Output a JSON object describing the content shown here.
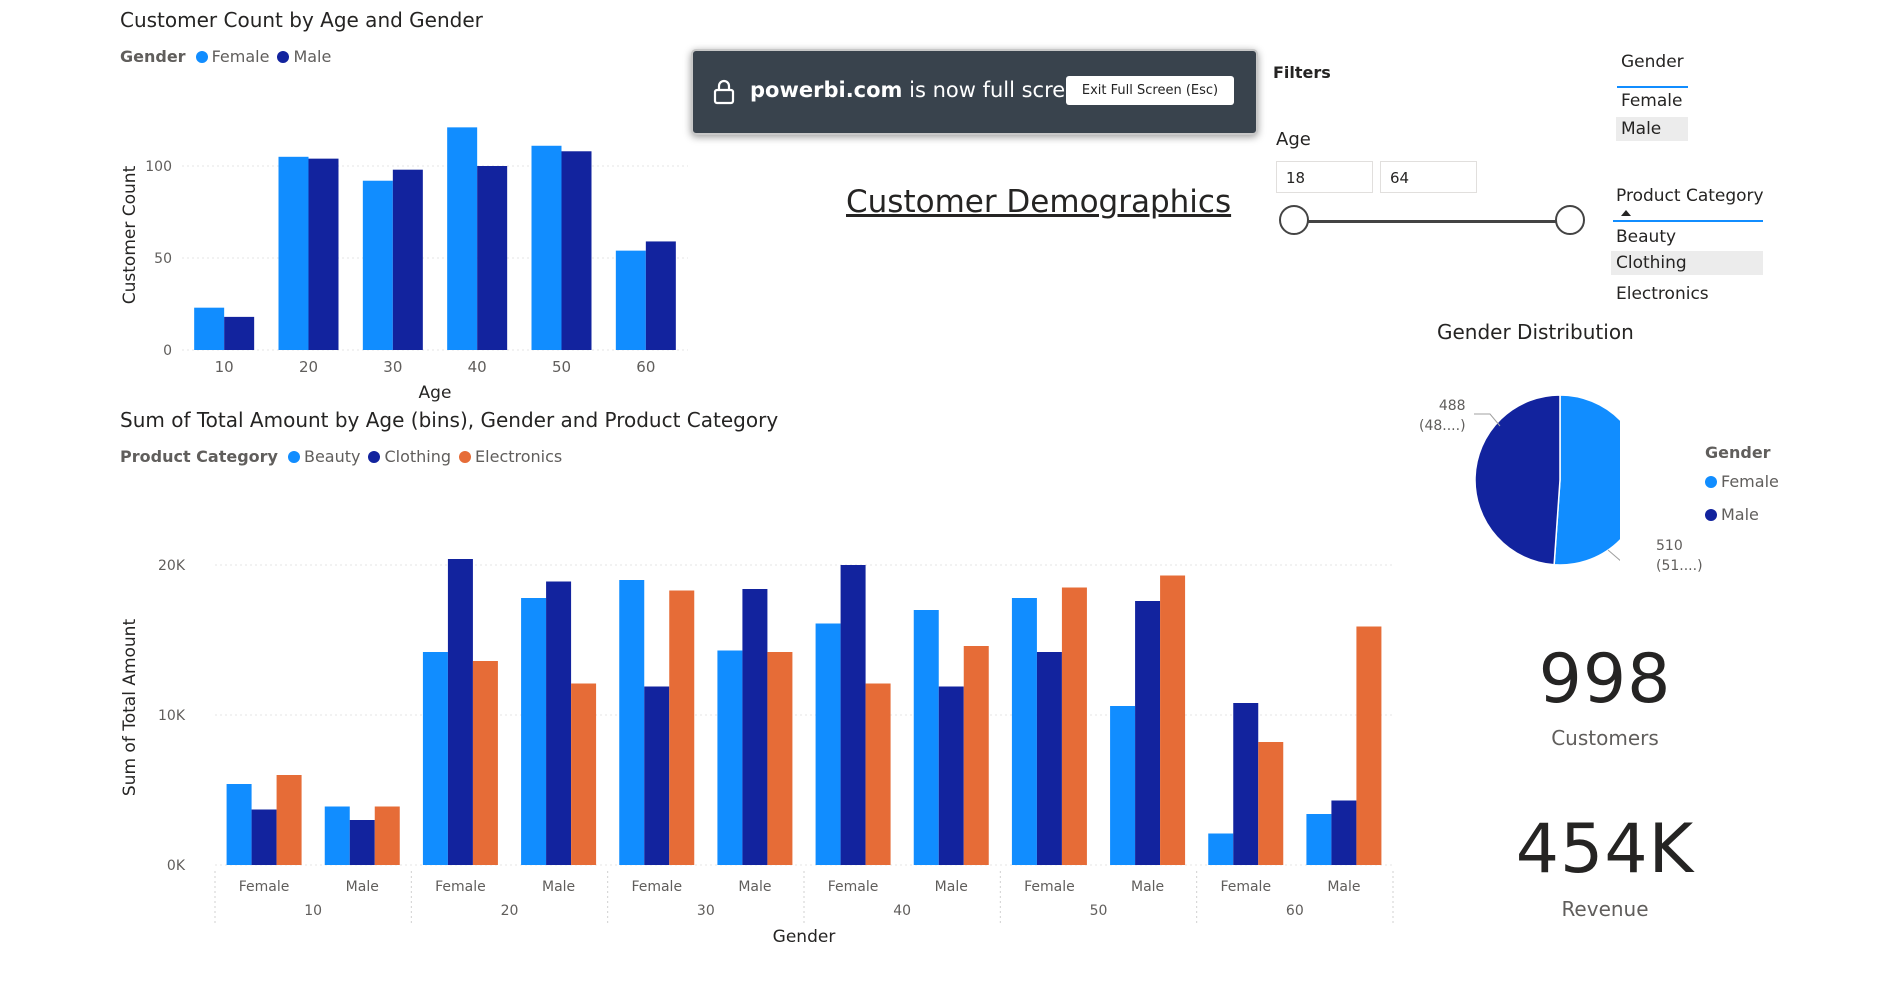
{
  "page": {
    "title": "Customer Demographics"
  },
  "fullscreen_toast": {
    "domain": "powerbi.com",
    "message": " is now full screen",
    "button_label": "Exit Full Screen (Esc)",
    "icon": "lock-icon"
  },
  "filters": {
    "label": "Filters",
    "age": {
      "label": "Age",
      "min_value": "18",
      "max_value": "64",
      "range_min": 18,
      "range_max": 64
    }
  },
  "gender_slicer": {
    "header": "Gender",
    "items": [
      {
        "label": "Female",
        "selected": false
      },
      {
        "label": "Male",
        "selected": true
      }
    ]
  },
  "category_slicer": {
    "header": "Product Category",
    "items": [
      {
        "label": "Beauty",
        "selected": false
      },
      {
        "label": "Clothing",
        "selected": true
      },
      {
        "label": "Electronics",
        "selected": false
      }
    ]
  },
  "kpis": {
    "customers": {
      "value": "998",
      "label": "Customers"
    },
    "revenue": {
      "value": "454K",
      "label": "Revenue"
    }
  },
  "colors": {
    "female": "#118dff",
    "male": "#12239e",
    "beauty": "#118dff",
    "clothing": "#12239e",
    "electronics": "#e66c37"
  },
  "chart_data": [
    {
      "type": "bar",
      "title": "Customer Count by Age and Gender",
      "legend_title": "Gender",
      "xlabel": "Age",
      "ylabel": "Customer Count",
      "categories": [
        "10",
        "20",
        "30",
        "40",
        "50",
        "60"
      ],
      "ylim": [
        0,
        125
      ],
      "yticks": [
        0,
        50,
        100
      ],
      "series": [
        {
          "name": "Female",
          "color": "#118dff",
          "values": [
            23,
            105,
            92,
            121,
            111,
            54
          ]
        },
        {
          "name": "Male",
          "color": "#12239e",
          "values": [
            18,
            104,
            98,
            100,
            108,
            59
          ]
        }
      ]
    },
    {
      "type": "bar",
      "title": "Sum of Total Amount by Age (bins), Gender and Product Category",
      "legend_title": "Product Category",
      "xlabel": "Gender",
      "ylabel": "Sum of Total Amount",
      "groups": [
        {
          "age": "10",
          "genders": [
            "Female",
            "Male"
          ]
        },
        {
          "age": "20",
          "genders": [
            "Female",
            "Male"
          ]
        },
        {
          "age": "30",
          "genders": [
            "Female",
            "Male"
          ]
        },
        {
          "age": "40",
          "genders": [
            "Female",
            "Male"
          ]
        },
        {
          "age": "50",
          "genders": [
            "Female",
            "Male"
          ]
        },
        {
          "age": "60",
          "genders": [
            "Female",
            "Male"
          ]
        }
      ],
      "ylim": [
        0,
        21000
      ],
      "yticks": [
        0,
        10000,
        20000
      ],
      "ytick_labels": [
        "0K",
        "10K",
        "20K"
      ],
      "series": [
        {
          "name": "Beauty",
          "color": "#118dff",
          "values": [
            5400,
            3900,
            14200,
            17800,
            19000,
            14300,
            16100,
            17000,
            17800,
            10600,
            2100,
            3400
          ]
        },
        {
          "name": "Clothing",
          "color": "#12239e",
          "values": [
            3700,
            3000,
            20400,
            18900,
            11900,
            18400,
            20000,
            11900,
            14200,
            17600,
            10800,
            4300
          ]
        },
        {
          "name": "Electronics",
          "color": "#e66c37",
          "values": [
            6000,
            3900,
            13600,
            12100,
            18300,
            14200,
            12100,
            14600,
            18500,
            19300,
            8200,
            15900
          ]
        }
      ]
    },
    {
      "type": "pie",
      "title": "Gender Distribution",
      "legend_title": "Gender",
      "slices": [
        {
          "name": "Female",
          "value": 510,
          "label": "510",
          "pct_label": "(51....)",
          "color": "#118dff"
        },
        {
          "name": "Male",
          "value": 488,
          "label": "488",
          "pct_label": "(48....)",
          "color": "#12239e"
        }
      ]
    }
  ]
}
